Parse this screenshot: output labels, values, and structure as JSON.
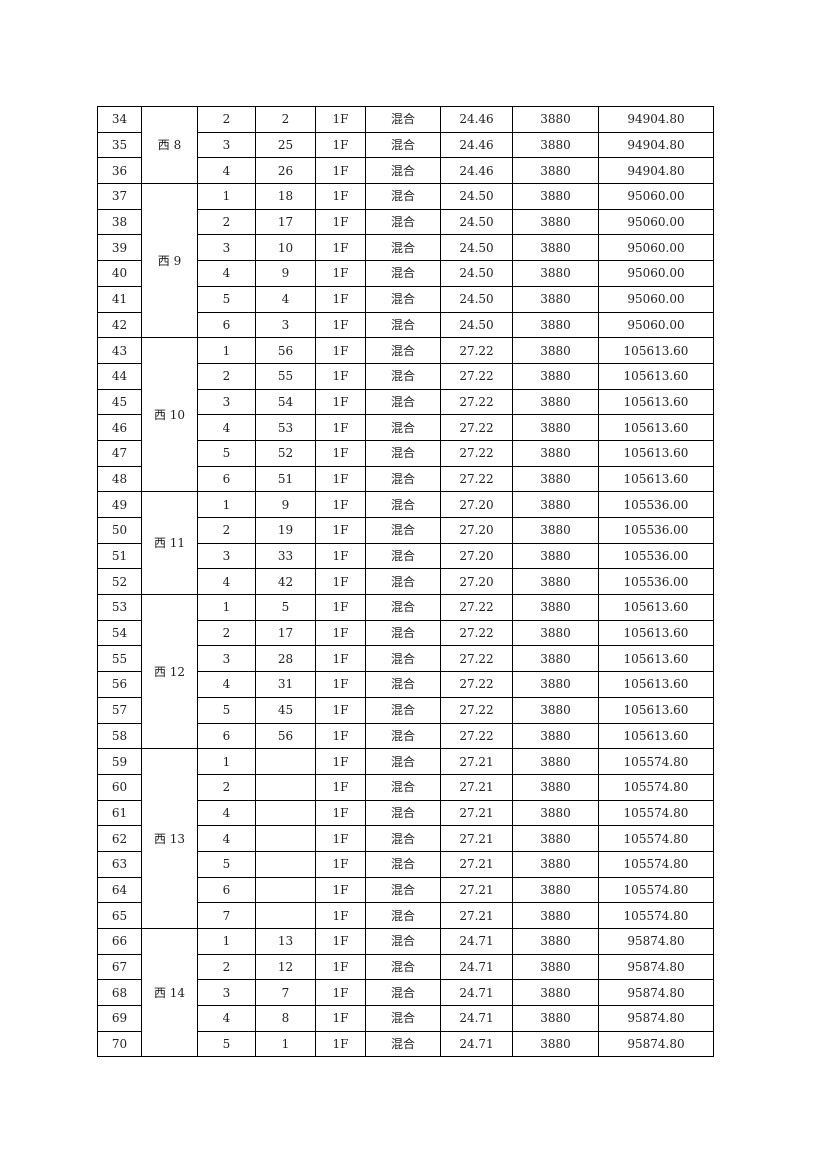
{
  "table": {
    "groups": [
      {
        "name": "西 8",
        "rows": [
          [
            "34",
            "2",
            "2",
            "1F",
            "混合",
            "24.46",
            "3880",
            "94904.80"
          ],
          [
            "35",
            "3",
            "25",
            "1F",
            "混合",
            "24.46",
            "3880",
            "94904.80"
          ],
          [
            "36",
            "4",
            "26",
            "1F",
            "混合",
            "24.46",
            "3880",
            "94904.80"
          ]
        ]
      },
      {
        "name": "西 9",
        "rows": [
          [
            "37",
            "1",
            "18",
            "1F",
            "混合",
            "24.50",
            "3880",
            "95060.00"
          ],
          [
            "38",
            "2",
            "17",
            "1F",
            "混合",
            "24.50",
            "3880",
            "95060.00"
          ],
          [
            "39",
            "3",
            "10",
            "1F",
            "混合",
            "24.50",
            "3880",
            "95060.00"
          ],
          [
            "40",
            "4",
            "9",
            "1F",
            "混合",
            "24.50",
            "3880",
            "95060.00"
          ],
          [
            "41",
            "5",
            "4",
            "1F",
            "混合",
            "24.50",
            "3880",
            "95060.00"
          ],
          [
            "42",
            "6",
            "3",
            "1F",
            "混合",
            "24.50",
            "3880",
            "95060.00"
          ]
        ]
      },
      {
        "name": "西 10",
        "rows": [
          [
            "43",
            "1",
            "56",
            "1F",
            "混合",
            "27.22",
            "3880",
            "105613.60"
          ],
          [
            "44",
            "2",
            "55",
            "1F",
            "混合",
            "27.22",
            "3880",
            "105613.60"
          ],
          [
            "45",
            "3",
            "54",
            "1F",
            "混合",
            "27.22",
            "3880",
            "105613.60"
          ],
          [
            "46",
            "4",
            "53",
            "1F",
            "混合",
            "27.22",
            "3880",
            "105613.60"
          ],
          [
            "47",
            "5",
            "52",
            "1F",
            "混合",
            "27.22",
            "3880",
            "105613.60"
          ],
          [
            "48",
            "6",
            "51",
            "1F",
            "混合",
            "27.22",
            "3880",
            "105613.60"
          ]
        ]
      },
      {
        "name": "西 11",
        "rows": [
          [
            "49",
            "1",
            "9",
            "1F",
            "混合",
            "27.20",
            "3880",
            "105536.00"
          ],
          [
            "50",
            "2",
            "19",
            "1F",
            "混合",
            "27.20",
            "3880",
            "105536.00"
          ],
          [
            "51",
            "3",
            "33",
            "1F",
            "混合",
            "27.20",
            "3880",
            "105536.00"
          ],
          [
            "52",
            "4",
            "42",
            "1F",
            "混合",
            "27.20",
            "3880",
            "105536.00"
          ]
        ]
      },
      {
        "name": "西 12",
        "rows": [
          [
            "53",
            "1",
            "5",
            "1F",
            "混合",
            "27.22",
            "3880",
            "105613.60"
          ],
          [
            "54",
            "2",
            "17",
            "1F",
            "混合",
            "27.22",
            "3880",
            "105613.60"
          ],
          [
            "55",
            "3",
            "28",
            "1F",
            "混合",
            "27.22",
            "3880",
            "105613.60"
          ],
          [
            "56",
            "4",
            "31",
            "1F",
            "混合",
            "27.22",
            "3880",
            "105613.60"
          ],
          [
            "57",
            "5",
            "45",
            "1F",
            "混合",
            "27.22",
            "3880",
            "105613.60"
          ],
          [
            "58",
            "6",
            "56",
            "1F",
            "混合",
            "27.22",
            "3880",
            "105613.60"
          ]
        ]
      },
      {
        "name": "西 13",
        "rows": [
          [
            "59",
            "1",
            "",
            "1F",
            "混合",
            "27.21",
            "3880",
            "105574.80"
          ],
          [
            "60",
            "2",
            "",
            "1F",
            "混合",
            "27.21",
            "3880",
            "105574.80"
          ],
          [
            "61",
            "4",
            "",
            "1F",
            "混合",
            "27.21",
            "3880",
            "105574.80"
          ],
          [
            "62",
            "4",
            "",
            "1F",
            "混合",
            "27.21",
            "3880",
            "105574.80"
          ],
          [
            "63",
            "5",
            "",
            "1F",
            "混合",
            "27.21",
            "3880",
            "105574.80"
          ],
          [
            "64",
            "6",
            "",
            "1F",
            "混合",
            "27.21",
            "3880",
            "105574.80"
          ],
          [
            "65",
            "7",
            "",
            "1F",
            "混合",
            "27.21",
            "3880",
            "105574.80"
          ]
        ]
      },
      {
        "name": "西 14",
        "rows": [
          [
            "66",
            "1",
            "13",
            "1F",
            "混合",
            "24.71",
            "3880",
            "95874.80"
          ],
          [
            "67",
            "2",
            "12",
            "1F",
            "混合",
            "24.71",
            "3880",
            "95874.80"
          ],
          [
            "68",
            "3",
            "7",
            "1F",
            "混合",
            "24.71",
            "3880",
            "95874.80"
          ],
          [
            "69",
            "4",
            "8",
            "1F",
            "混合",
            "24.71",
            "3880",
            "95874.80"
          ],
          [
            "70",
            "5",
            "1",
            "1F",
            "混合",
            "24.71",
            "3880",
            "95874.80"
          ]
        ]
      }
    ]
  }
}
